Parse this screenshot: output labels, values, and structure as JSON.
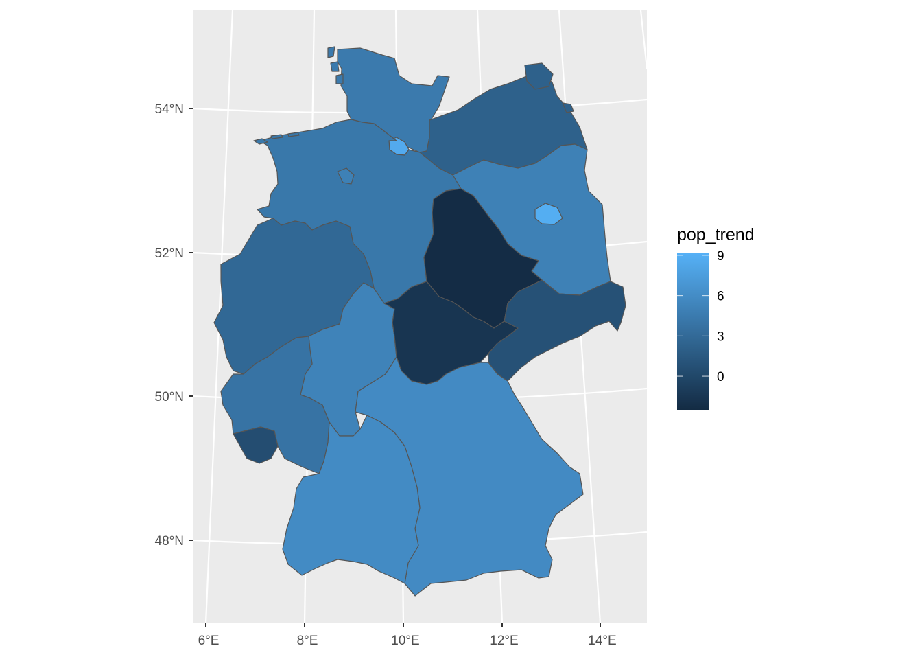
{
  "chart_data": {
    "type": "choropleth",
    "fill_variable": "pop_trend",
    "legend": {
      "title": "pop_trend",
      "breaks": [
        9,
        6,
        3,
        0
      ],
      "color_low": "#132B43",
      "color_high": "#56B1F7",
      "range": [
        -2.5,
        9.2
      ],
      "placement": "right"
    },
    "x_axis": {
      "tick_labels": [
        "6°E",
        "8°E",
        "10°E",
        "12°E",
        "14°E"
      ],
      "lon_values": [
        6,
        8,
        10,
        12,
        14
      ]
    },
    "y_axis": {
      "tick_labels": [
        "54°N",
        "52°N",
        "50°N",
        "48°N"
      ],
      "lat_values": [
        54,
        52,
        50,
        48
      ]
    },
    "panel_background": "#EBEBEB",
    "gridline_color": "#FFFFFF",
    "border_color": "#555555",
    "regions": [
      {
        "name": "Schleswig-Holstein",
        "value": 4.4
      },
      {
        "name": "Hamburg",
        "value": 8.6
      },
      {
        "name": "Mecklenburg-Vorpommern",
        "value": 2.2
      },
      {
        "name": "Niedersachsen",
        "value": 4.2
      },
      {
        "name": "Bremen",
        "value": 5.0
      },
      {
        "name": "Berlin",
        "value": 8.9
      },
      {
        "name": "Brandenburg",
        "value": 5.0
      },
      {
        "name": "Sachsen-Anhalt",
        "value": -2.4
      },
      {
        "name": "Nordrhein-Westfalen",
        "value": 2.8
      },
      {
        "name": "Hessen",
        "value": 5.2
      },
      {
        "name": "Thüringen",
        "value": -1.6
      },
      {
        "name": "Sachsen",
        "value": 0.8
      },
      {
        "name": "Rheinland-Pfalz",
        "value": 3.8
      },
      {
        "name": "Saarland",
        "value": 0.5
      },
      {
        "name": "Bayern",
        "value": 5.8
      },
      {
        "name": "Baden-Württemberg",
        "value": 5.9
      }
    ]
  }
}
